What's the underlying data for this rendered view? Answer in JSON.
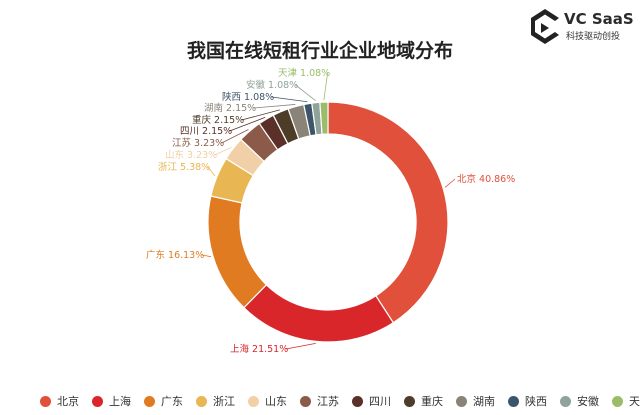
{
  "brand": {
    "name": "VC SaaS",
    "tagline": "科技驱动创投"
  },
  "chart_data": {
    "type": "pie",
    "donut": true,
    "title": "我国在线短租行业企业地域分布",
    "legend_position": "bottom",
    "categories": [
      "北京",
      "上海",
      "广东",
      "浙江",
      "山东",
      "江苏",
      "四川",
      "重庆",
      "湖南",
      "陕西",
      "安徽",
      "天津"
    ],
    "values": [
      40.86,
      21.51,
      16.13,
      5.38,
      3.23,
      3.23,
      2.15,
      2.15,
      2.15,
      1.08,
      1.08,
      1.08
    ],
    "labels": [
      "北京 40.86%",
      "上海 21.51%",
      "广东 16.13%",
      "浙江 5.38%",
      "山东 3.23%",
      "江苏 3.23%",
      "四川 2.15%",
      "重庆 2.15%",
      "湖南 2.15%",
      "陕西 1.08%",
      "安徽 1.08%",
      "天津 1.08%"
    ],
    "colors": [
      "#e0503a",
      "#d9262a",
      "#e07b22",
      "#e8b753",
      "#f2d0a7",
      "#8c5a48",
      "#5a3028",
      "#4d3d28",
      "#8a8478",
      "#3d5568",
      "#8fa39a",
      "#9bbd6a"
    ]
  }
}
